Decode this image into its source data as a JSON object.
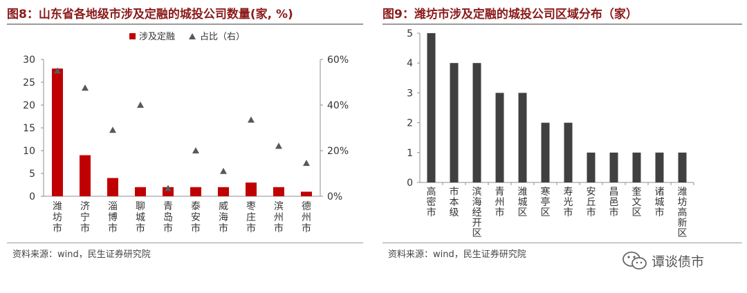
{
  "left": {
    "title": "图8：山东省各地级市涉及定融的城投公司数量(家, %)",
    "source": "资料来源：wind，民生证券研究院"
  },
  "right": {
    "title": "图9：潍坊市涉及定融的城投公司区域分布（家）",
    "source": "资料来源：wind，民生证券研究院"
  },
  "watermark": {
    "text": "谭谈债市",
    "icon": "wechat-icon"
  },
  "colors": {
    "bar_left": "#c00000",
    "marker": "#595959",
    "bar_right": "#404040",
    "title": "#8b1a1a"
  },
  "chart_data": [
    {
      "type": "bar",
      "categories": [
        "潍坊市",
        "济宁市",
        "淄博市",
        "聊城市",
        "青岛市",
        "泰安市",
        "威海市",
        "枣庄市",
        "滨州市",
        "德州市"
      ],
      "series": [
        {
          "name": "涉及定融",
          "type": "bar",
          "axis": "left",
          "values": [
            28,
            9,
            4,
            2,
            2,
            2,
            2,
            3,
            2,
            1
          ]
        },
        {
          "name": "占比（右）",
          "type": "scatter",
          "marker": "triangle",
          "axis": "right",
          "values": [
            55,
            47.5,
            29,
            40,
            3.5,
            20,
            11,
            33.5,
            22,
            14.5
          ]
        }
      ],
      "y_left": {
        "min": 0,
        "max": 30,
        "ticks": [
          "0",
          "5",
          "10",
          "15",
          "20",
          "25",
          "30"
        ]
      },
      "y_right": {
        "min": 0,
        "max": 60,
        "ticks": [
          "0%",
          "20%",
          "40%",
          "60%"
        ]
      },
      "legend_position": "top-center",
      "grid": false
    },
    {
      "type": "bar",
      "categories": [
        "高密市",
        "市本级",
        "滨海经开区",
        "青州市",
        "潍城区",
        "寒亭区",
        "寿光市",
        "安丘市",
        "昌邑市",
        "奎文区",
        "诸城市",
        "潍坊高新区"
      ],
      "values": [
        5,
        4,
        4,
        3,
        3,
        2,
        2,
        1,
        1,
        1,
        1,
        1
      ],
      "y": {
        "min": 0,
        "max": 5,
        "ticks": [
          "0",
          "1",
          "2",
          "3",
          "4",
          "5"
        ]
      },
      "grid": false
    }
  ]
}
